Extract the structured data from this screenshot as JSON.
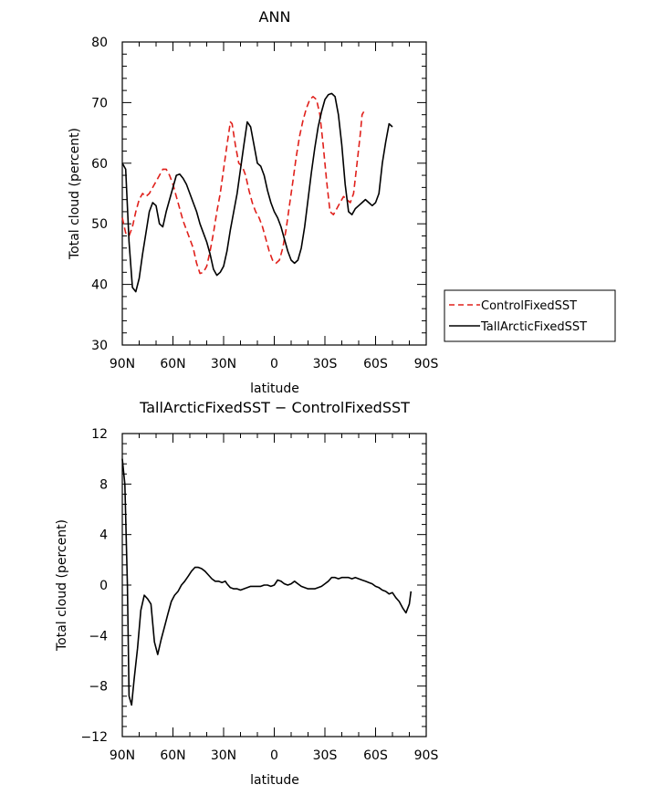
{
  "chart_data": [
    {
      "type": "line",
      "title": "ANN",
      "xlabel": "latitude",
      "ylabel": "Total cloud (percent)",
      "xlim": [
        90,
        -90
      ],
      "ylim": [
        30,
        80
      ],
      "x_ticks": [
        90,
        60,
        30,
        0,
        -30,
        -60,
        -90
      ],
      "x_tick_labels": [
        "90N",
        "60N",
        "30N",
        "0",
        "30S",
        "60S",
        "90S"
      ],
      "y_ticks": [
        30,
        40,
        50,
        60,
        70,
        80
      ],
      "y_tick_labels": [
        "30",
        "40",
        "50",
        "60",
        "70",
        "80"
      ],
      "legend": "right-outside",
      "series": [
        {
          "name": "ControlFixedSST",
          "color": "#e0201b",
          "dash": "dashed",
          "points": [
            [
              90,
              51
            ],
            [
              88,
              48.5
            ],
            [
              86,
              48
            ],
            [
              84,
              49.5
            ],
            [
              82,
              52
            ],
            [
              80,
              54
            ],
            [
              78,
              55
            ],
            [
              76,
              54.5
            ],
            [
              74,
              55
            ],
            [
              72,
              56
            ],
            [
              70,
              57
            ],
            [
              68,
              58
            ],
            [
              66,
              59
            ],
            [
              64,
              59
            ],
            [
              62,
              58
            ],
            [
              60,
              56.5
            ],
            [
              58,
              54.5
            ],
            [
              56,
              52.5
            ],
            [
              54,
              50.5
            ],
            [
              52,
              49
            ],
            [
              50,
              47.5
            ],
            [
              48,
              46
            ],
            [
              46,
              43.5
            ],
            [
              44,
              41.8
            ],
            [
              42,
              42
            ],
            [
              40,
              43
            ],
            [
              38,
              45.5
            ],
            [
              36,
              48.5
            ],
            [
              34,
              52
            ],
            [
              32,
              55
            ],
            [
              30,
              59
            ],
            [
              28,
              63
            ],
            [
              26,
              66.8
            ],
            [
              25,
              66.5
            ],
            [
              23,
              63
            ],
            [
              21,
              60
            ],
            [
              19,
              59.5
            ],
            [
              17,
              58
            ],
            [
              15,
              55.5
            ],
            [
              13,
              53.5
            ],
            [
              11,
              52
            ],
            [
              9,
              51
            ],
            [
              7,
              49.5
            ],
            [
              5,
              47.5
            ],
            [
              3,
              45.5
            ],
            [
              1,
              44
            ],
            [
              -1,
              43.5
            ],
            [
              -3,
              44
            ],
            [
              -5,
              46
            ],
            [
              -7,
              49
            ],
            [
              -9,
              53
            ],
            [
              -11,
              57
            ],
            [
              -13,
              61
            ],
            [
              -15,
              64.5
            ],
            [
              -17,
              67
            ],
            [
              -19,
              69
            ],
            [
              -21,
              70.5
            ],
            [
              -23,
              71
            ],
            [
              -25,
              70.5
            ],
            [
              -27,
              68
            ],
            [
              -29,
              63
            ],
            [
              -31,
              57
            ],
            [
              -33,
              52
            ],
            [
              -35,
              51.5
            ],
            [
              -37,
              52.5
            ],
            [
              -39,
              53.5
            ],
            [
              -41,
              54.5
            ],
            [
              -43,
              54
            ],
            [
              -45,
              53.5
            ],
            [
              -47,
              55
            ],
            [
              -49,
              60
            ],
            [
              -51,
              65
            ],
            [
              -52,
              68
            ],
            [
              -53,
              68.5
            ]
          ]
        },
        {
          "name": "TallArcticFixedSST",
          "color": "#000000",
          "dash": "solid",
          "points": [
            [
              90,
              60
            ],
            [
              88,
              59
            ],
            [
              86,
              47
            ],
            [
              84,
              39.5
            ],
            [
              82,
              38.8
            ],
            [
              80,
              41
            ],
            [
              78,
              45
            ],
            [
              76,
              48.5
            ],
            [
              74,
              52
            ],
            [
              72,
              53.5
            ],
            [
              70,
              53
            ],
            [
              68,
              50
            ],
            [
              66,
              49.5
            ],
            [
              64,
              52
            ],
            [
              62,
              54
            ],
            [
              60,
              56
            ],
            [
              58,
              58
            ],
            [
              56,
              58.2
            ],
            [
              54,
              57.5
            ],
            [
              52,
              56.5
            ],
            [
              50,
              55
            ],
            [
              48,
              53.5
            ],
            [
              46,
              52
            ],
            [
              44,
              50
            ],
            [
              42,
              48.5
            ],
            [
              40,
              47
            ],
            [
              38,
              45
            ],
            [
              36,
              42.5
            ],
            [
              34,
              41.5
            ],
            [
              32,
              42
            ],
            [
              30,
              43
            ],
            [
              28,
              45.5
            ],
            [
              26,
              49
            ],
            [
              24,
              52
            ],
            [
              22,
              55
            ],
            [
              20,
              59
            ],
            [
              18,
              63
            ],
            [
              16,
              66.8
            ],
            [
              14,
              66
            ],
            [
              12,
              63
            ],
            [
              10,
              60
            ],
            [
              8,
              59.5
            ],
            [
              6,
              58
            ],
            [
              4,
              55.5
            ],
            [
              2,
              53.5
            ],
            [
              0,
              52
            ],
            [
              -2,
              51
            ],
            [
              -4,
              49.5
            ],
            [
              -6,
              47.5
            ],
            [
              -8,
              45.5
            ],
            [
              -10,
              44
            ],
            [
              -12,
              43.5
            ],
            [
              -14,
              44
            ],
            [
              -16,
              46
            ],
            [
              -18,
              49.5
            ],
            [
              -20,
              54
            ],
            [
              -22,
              58.5
            ],
            [
              -24,
              62.5
            ],
            [
              -26,
              66
            ],
            [
              -28,
              68.5
            ],
            [
              -30,
              70.5
            ],
            [
              -32,
              71.3
            ],
            [
              -34,
              71.5
            ],
            [
              -36,
              71
            ],
            [
              -38,
              68
            ],
            [
              -40,
              63
            ],
            [
              -42,
              56.5
            ],
            [
              -44,
              52
            ],
            [
              -46,
              51.5
            ],
            [
              -48,
              52.5
            ],
            [
              -50,
              53
            ],
            [
              -52,
              53.5
            ],
            [
              -54,
              54
            ],
            [
              -56,
              53.5
            ],
            [
              -58,
              53
            ],
            [
              -60,
              53.5
            ],
            [
              -62,
              55
            ],
            [
              -64,
              60
            ],
            [
              -66,
              63.5
            ],
            [
              -68,
              66.5
            ],
            [
              -70,
              66
            ]
          ]
        }
      ]
    },
    {
      "type": "line",
      "title": "TallArcticFixedSST − ControlFixedSST",
      "xlabel": "latitude",
      "ylabel": "Total cloud (percent)",
      "xlim": [
        90,
        -90
      ],
      "ylim": [
        -12,
        12
      ],
      "x_ticks": [
        90,
        60,
        30,
        0,
        -30,
        -60,
        -90
      ],
      "x_tick_labels": [
        "90N",
        "60N",
        "30N",
        "0",
        "30S",
        "60S",
        "90S"
      ],
      "y_ticks": [
        -12,
        -8,
        -4,
        0,
        4,
        8,
        12
      ],
      "y_tick_labels": [
        "−12",
        "−8",
        "−4",
        "0",
        "4",
        "8",
        "12"
      ],
      "series": [
        {
          "color": "#000000",
          "dash": "solid",
          "points": [
            [
              90,
              10
            ],
            [
              88.5,
              8
            ],
            [
              87,
              0
            ],
            [
              86,
              -8.8
            ],
            [
              84.5,
              -9.5
            ],
            [
              83,
              -7.5
            ],
            [
              81,
              -5
            ],
            [
              79,
              -2
            ],
            [
              77,
              -0.8
            ],
            [
              75,
              -1.1
            ],
            [
              73,
              -1.5
            ],
            [
              71,
              -4.5
            ],
            [
              69,
              -5.5
            ],
            [
              67,
              -4.3
            ],
            [
              65,
              -3.3
            ],
            [
              63,
              -2.3
            ],
            [
              61,
              -1.3
            ],
            [
              59,
              -0.8
            ],
            [
              57,
              -0.5
            ],
            [
              55,
              0
            ],
            [
              53,
              0.3
            ],
            [
              51,
              0.7
            ],
            [
              49,
              1.1
            ],
            [
              47,
              1.4
            ],
            [
              45,
              1.4
            ],
            [
              43,
              1.3
            ],
            [
              41,
              1.1
            ],
            [
              39,
              0.8
            ],
            [
              37,
              0.5
            ],
            [
              35,
              0.3
            ],
            [
              33,
              0.3
            ],
            [
              31,
              0.2
            ],
            [
              29,
              0.3
            ],
            [
              28,
              0.1
            ],
            [
              26,
              -0.2
            ],
            [
              24,
              -0.3
            ],
            [
              22,
              -0.3
            ],
            [
              20,
              -0.4
            ],
            [
              18,
              -0.3
            ],
            [
              16,
              -0.2
            ],
            [
              14,
              -0.1
            ],
            [
              12,
              -0.1
            ],
            [
              10,
              -0.1
            ],
            [
              8,
              -0.1
            ],
            [
              6,
              0
            ],
            [
              4,
              0
            ],
            [
              2,
              -0.1
            ],
            [
              0,
              0
            ],
            [
              -2,
              0.4
            ],
            [
              -4,
              0.3
            ],
            [
              -6,
              0.1
            ],
            [
              -8,
              0
            ],
            [
              -10,
              0.1
            ],
            [
              -12,
              0.3
            ],
            [
              -14,
              0.1
            ],
            [
              -16,
              -0.1
            ],
            [
              -18,
              -0.2
            ],
            [
              -20,
              -0.3
            ],
            [
              -22,
              -0.3
            ],
            [
              -24,
              -0.3
            ],
            [
              -26,
              -0.2
            ],
            [
              -28,
              -0.1
            ],
            [
              -30,
              0.1
            ],
            [
              -32,
              0.3
            ],
            [
              -34,
              0.6
            ],
            [
              -36,
              0.6
            ],
            [
              -38,
              0.5
            ],
            [
              -40,
              0.6
            ],
            [
              -42,
              0.6
            ],
            [
              -44,
              0.6
            ],
            [
              -46,
              0.5
            ],
            [
              -48,
              0.6
            ],
            [
              -50,
              0.5
            ],
            [
              -52,
              0.4
            ],
            [
              -54,
              0.3
            ],
            [
              -56,
              0.2
            ],
            [
              -58,
              0.1
            ],
            [
              -60,
              -0.1
            ],
            [
              -62,
              -0.2
            ],
            [
              -64,
              -0.4
            ],
            [
              -66,
              -0.5
            ],
            [
              -68,
              -0.7
            ],
            [
              -70,
              -0.6
            ],
            [
              -72,
              -1
            ],
            [
              -74,
              -1.3
            ],
            [
              -76,
              -1.8
            ],
            [
              -78,
              -2.2
            ],
            [
              -80,
              -1.5
            ],
            [
              -81,
              -0.5
            ]
          ]
        }
      ]
    }
  ]
}
